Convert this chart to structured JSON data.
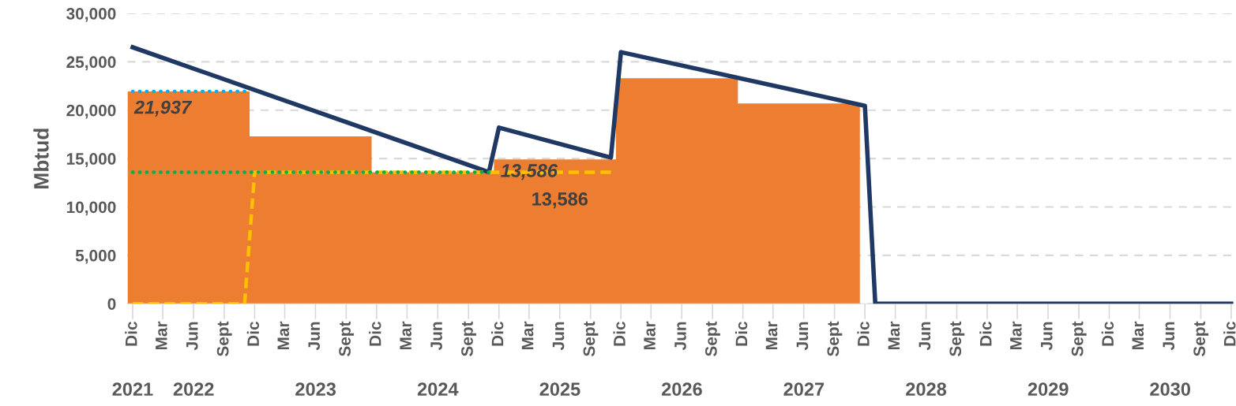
{
  "chart_data": {
    "type": "line",
    "ylabel": "Mbtud",
    "ylim": [
      0,
      30000
    ],
    "yticks": [
      {
        "value": 0,
        "label": "0"
      },
      {
        "value": 5000,
        "label": "5,000"
      },
      {
        "value": 10000,
        "label": "10,000"
      },
      {
        "value": 15000,
        "label": "15,000"
      },
      {
        "value": 20000,
        "label": "20,000"
      },
      {
        "value": 25000,
        "label": "25,000"
      },
      {
        "value": 30000,
        "label": "30,000"
      }
    ],
    "xlim": [
      "2021-11-15",
      "2030-12-08"
    ],
    "xticks": [
      {
        "value": "2021-12",
        "label": "Dic"
      },
      {
        "value": "2022-03",
        "label": "Mar"
      },
      {
        "value": "2022-06",
        "label": "Jun"
      },
      {
        "value": "2022-09",
        "label": "Sept"
      },
      {
        "value": "2022-12",
        "label": "Dic"
      },
      {
        "value": "2023-03",
        "label": "Mar"
      },
      {
        "value": "2023-06",
        "label": "Jun"
      },
      {
        "value": "2023-09",
        "label": "Sept"
      },
      {
        "value": "2023-12",
        "label": "Dic"
      },
      {
        "value": "2024-03",
        "label": "Mar"
      },
      {
        "value": "2024-06",
        "label": "Jun"
      },
      {
        "value": "2024-09",
        "label": "Sept"
      },
      {
        "value": "2024-12",
        "label": "Dic"
      },
      {
        "value": "2025-03",
        "label": "Mar"
      },
      {
        "value": "2025-06",
        "label": "Jun"
      },
      {
        "value": "2025-09",
        "label": "Sept"
      },
      {
        "value": "2025-12",
        "label": "Dic"
      },
      {
        "value": "2026-03",
        "label": "Mar"
      },
      {
        "value": "2026-06",
        "label": "Jun"
      },
      {
        "value": "2026-09",
        "label": "Sept"
      },
      {
        "value": "2026-12",
        "label": "Dic"
      },
      {
        "value": "2027-03",
        "label": "Mar"
      },
      {
        "value": "2027-06",
        "label": "Jun"
      },
      {
        "value": "2027-09",
        "label": "Sept"
      },
      {
        "value": "2027-12",
        "label": "Dic"
      },
      {
        "value": "2028-03",
        "label": "Mar"
      },
      {
        "value": "2028-06",
        "label": "Jun"
      },
      {
        "value": "2028-09",
        "label": "Sept"
      },
      {
        "value": "2028-12",
        "label": "Dic"
      },
      {
        "value": "2029-03",
        "label": "Mar"
      },
      {
        "value": "2029-06",
        "label": "Jun"
      },
      {
        "value": "2029-09",
        "label": "Sept"
      },
      {
        "value": "2029-12",
        "label": "Dic"
      },
      {
        "value": "2030-03",
        "label": "Mar"
      },
      {
        "value": "2030-06",
        "label": "Jun"
      },
      {
        "value": "2030-09",
        "label": "Sept"
      },
      {
        "value": "2030-12",
        "label": "Dic"
      }
    ],
    "grid": "y",
    "legend": false,
    "series": [
      {
        "type": "histogram",
        "color": "#ed7d31",
        "bins": [
          "2021-11-16",
          "2022-11-16",
          "2023-11-16",
          "2024-11-16",
          "2025-11-16",
          "2026-11-16",
          "2027-11-16"
        ],
        "values": [
          21937,
          17300,
          13586,
          14900,
          23300,
          20700
        ]
      },
      {
        "color": "#ffc000",
        "line_style": "dashed",
        "x": [
          "2021-12",
          "2022-11",
          "2022-12",
          "2025-11"
        ],
        "values": [
          0,
          0,
          13586,
          13586
        ]
      },
      {
        "color": "#00b0f0",
        "line_style": "dotted",
        "x": [
          "2021-12",
          "2022-11"
        ],
        "values": [
          21937,
          21937
        ]
      },
      {
        "color": "#00b050",
        "line_style": "dotted",
        "x": [
          "2021-12",
          "2024-11"
        ],
        "values": [
          13586,
          13586
        ]
      },
      {
        "color": "#1f3864",
        "line_style": "solid",
        "x": [
          "2021-12",
          "2024-11",
          "2024-12",
          "2025-11",
          "2025-12",
          "2027-12",
          "2028-01",
          "2030-12"
        ],
        "values": [
          26500,
          13600,
          18200,
          15100,
          26000,
          20450,
          0,
          0
        ]
      }
    ],
    "annotations": [
      {
        "text": "21,937",
        "x": "2022-03",
        "y": 21937
      },
      {
        "text": "13,586",
        "x": "2025-03",
        "y": 13586
      },
      {
        "text": "13,586",
        "x": "2025-06",
        "y": 13586
      },
      "2021",
      "2022",
      "2023",
      "2024",
      "2025",
      "2026",
      "2027",
      "2028",
      "2029",
      "2030"
    ]
  }
}
